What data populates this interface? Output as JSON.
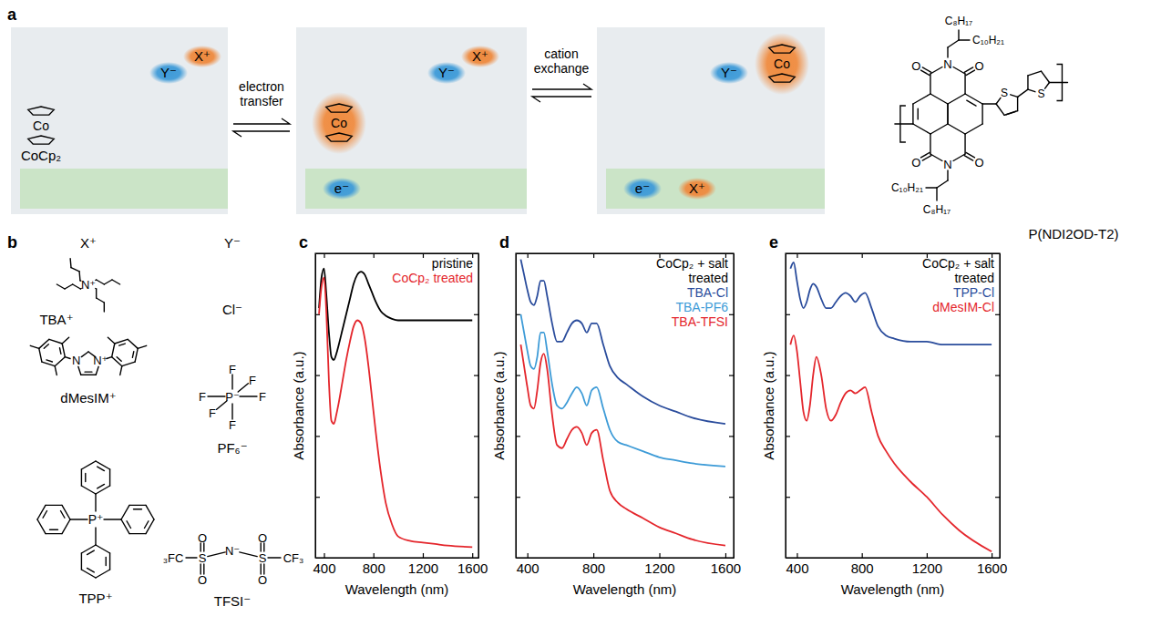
{
  "chart_data": [
    {
      "type": "line",
      "panel": "c",
      "x_label": "Wavelength (nm)",
      "y_label": "Absorbance (a.u.)",
      "x": [
        360,
        380,
        400,
        420,
        440,
        460,
        480,
        500,
        520,
        550,
        580,
        610,
        640,
        670,
        700,
        730,
        760,
        790,
        820,
        860,
        900,
        950,
        1000,
        1100,
        1200,
        1300,
        1400,
        1600
      ],
      "series": [
        {
          "name": "pristine",
          "color": "#000000",
          "values": [
            0.82,
            0.92,
            0.95,
            0.86,
            0.74,
            0.66,
            0.65,
            0.67,
            0.7,
            0.75,
            0.8,
            0.85,
            0.9,
            0.93,
            0.94,
            0.93,
            0.9,
            0.87,
            0.84,
            0.81,
            0.795,
            0.785,
            0.78,
            0.78,
            0.78,
            0.78,
            0.78,
            0.78
          ]
        },
        {
          "name": "CoCp₂ treated",
          "color": "#e4262c",
          "values": [
            0.8,
            0.89,
            0.92,
            0.8,
            0.58,
            0.45,
            0.44,
            0.47,
            0.51,
            0.58,
            0.65,
            0.71,
            0.76,
            0.78,
            0.77,
            0.72,
            0.63,
            0.52,
            0.41,
            0.28,
            0.18,
            0.11,
            0.07,
            0.055,
            0.05,
            0.045,
            0.04,
            0.035
          ]
        }
      ],
      "xlim": [
        330,
        1650
      ],
      "ylim": [
        0,
        1
      ],
      "xticks": [
        400,
        800,
        1200,
        1600
      ],
      "yticks": [
        0.2,
        0.4,
        0.6,
        0.8
      ],
      "tick_labels": "x",
      "legend": "top-right"
    },
    {
      "type": "line",
      "panel": "d",
      "title": "CoCp₂ + salt treated",
      "x_label": "Wavelength (nm)",
      "y_label": "Absorbance (a.u.)",
      "x": [
        360,
        380,
        400,
        420,
        440,
        460,
        480,
        500,
        520,
        550,
        580,
        610,
        640,
        670,
        700,
        730,
        760,
        790,
        820,
        860,
        900,
        950,
        1000,
        1100,
        1200,
        1300,
        1400,
        1600
      ],
      "series": [
        {
          "name": "TBA-Cl",
          "color": "#2a4c9c",
          "values": [
            0.98,
            0.93,
            0.88,
            0.84,
            0.83,
            0.86,
            0.91,
            0.91,
            0.86,
            0.77,
            0.71,
            0.71,
            0.74,
            0.77,
            0.78,
            0.77,
            0.74,
            0.77,
            0.77,
            0.7,
            0.63,
            0.59,
            0.57,
            0.53,
            0.5,
            0.48,
            0.46,
            0.44
          ]
        },
        {
          "name": "TBA-PF6",
          "color": "#3d9bd7",
          "values": [
            0.8,
            0.74,
            0.68,
            0.63,
            0.62,
            0.66,
            0.74,
            0.74,
            0.68,
            0.57,
            0.5,
            0.49,
            0.51,
            0.54,
            0.56,
            0.54,
            0.5,
            0.55,
            0.56,
            0.49,
            0.42,
            0.38,
            0.37,
            0.35,
            0.33,
            0.32,
            0.31,
            0.3
          ]
        },
        {
          "name": "TBA-TFSI",
          "color": "#e4262c",
          "values": [
            0.7,
            0.63,
            0.56,
            0.5,
            0.49,
            0.55,
            0.64,
            0.67,
            0.62,
            0.47,
            0.37,
            0.36,
            0.39,
            0.42,
            0.43,
            0.41,
            0.37,
            0.41,
            0.42,
            0.32,
            0.22,
            0.18,
            0.16,
            0.13,
            0.1,
            0.08,
            0.06,
            0.04
          ]
        }
      ],
      "xlim": [
        330,
        1650
      ],
      "ylim": [
        0,
        1
      ],
      "xticks": [
        400,
        800,
        1200,
        1600
      ],
      "yticks": [
        0.2,
        0.4,
        0.6,
        0.8
      ],
      "tick_labels": "x",
      "legend": "top-right"
    },
    {
      "type": "line",
      "panel": "e",
      "title": "CoCp₂ + salt treated",
      "x_label": "Wavelength (nm)",
      "y_label": "Absorbance (a.u.)",
      "x": [
        360,
        380,
        400,
        420,
        440,
        460,
        480,
        500,
        520,
        550,
        580,
        610,
        640,
        670,
        700,
        730,
        760,
        790,
        820,
        860,
        900,
        950,
        1000,
        1100,
        1200,
        1300,
        1400,
        1600
      ],
      "series": [
        {
          "name": "TPP-Cl",
          "color": "#2a4c9c",
          "values": [
            0.95,
            0.97,
            0.91,
            0.85,
            0.82,
            0.84,
            0.88,
            0.9,
            0.89,
            0.85,
            0.82,
            0.82,
            0.84,
            0.86,
            0.87,
            0.86,
            0.84,
            0.86,
            0.87,
            0.82,
            0.76,
            0.73,
            0.72,
            0.71,
            0.71,
            0.7,
            0.7,
            0.7
          ]
        },
        {
          "name": "dMesIM-Cl",
          "color": "#e4262c",
          "values": [
            0.7,
            0.73,
            0.68,
            0.58,
            0.48,
            0.45,
            0.5,
            0.6,
            0.66,
            0.6,
            0.49,
            0.45,
            0.47,
            0.51,
            0.54,
            0.55,
            0.54,
            0.55,
            0.56,
            0.48,
            0.4,
            0.35,
            0.31,
            0.25,
            0.2,
            0.14,
            0.09,
            0.02
          ]
        }
      ],
      "xlim": [
        330,
        1650
      ],
      "ylim": [
        0,
        1
      ],
      "xticks": [
        400,
        800,
        1200,
        1600
      ],
      "yticks": [
        0.2,
        0.4,
        0.6,
        0.8
      ],
      "tick_labels": "x",
      "legend": "top-right"
    }
  ],
  "scheme": {
    "panel": "a",
    "states": [
      {
        "metal": "Co",
        "complex": "CoCp₂",
        "anion": "Y⁻",
        "cation": "X⁺"
      },
      {
        "metal": "Co",
        "anion": "Y⁻",
        "cation": "X⁺",
        "electron": "e⁻"
      },
      {
        "metal": "Co",
        "anion": "Y⁻",
        "cation": "X⁺",
        "electron": "e⁻"
      }
    ],
    "steps": [
      "electron transfer",
      "cation exchange"
    ]
  },
  "polymer": {
    "name": "P(NDI2OD-T2)",
    "side_chains": [
      "C₈H₁₇",
      "C₁₀H₂₁",
      "C₁₀H₂₁",
      "C₈H₁₇"
    ],
    "atoms": [
      "N",
      "O",
      "O",
      "N",
      "O",
      "O",
      "S",
      "S"
    ]
  },
  "ions": {
    "panel": "b",
    "cation_head": "X⁺",
    "anion_head": "Y⁻",
    "cations": [
      {
        "name": "TBA⁺",
        "atoms": [
          "N⁺"
        ]
      },
      {
        "name": "dMesIM⁺",
        "atoms": [
          "N",
          "N⁺"
        ]
      },
      {
        "name": "TPP⁺",
        "atoms": [
          "P⁺"
        ]
      }
    ],
    "anions": [
      {
        "name": "Cl⁻"
      },
      {
        "name": "PF₆⁻",
        "atoms": [
          "P⁻",
          "F",
          "F",
          "F",
          "F",
          "F",
          "F"
        ]
      },
      {
        "name": "TFSI⁻",
        "atoms": [
          "₃FC",
          "S",
          "O",
          "O",
          "N⁻",
          "S",
          "O",
          "O",
          "CF₃"
        ]
      }
    ]
  }
}
